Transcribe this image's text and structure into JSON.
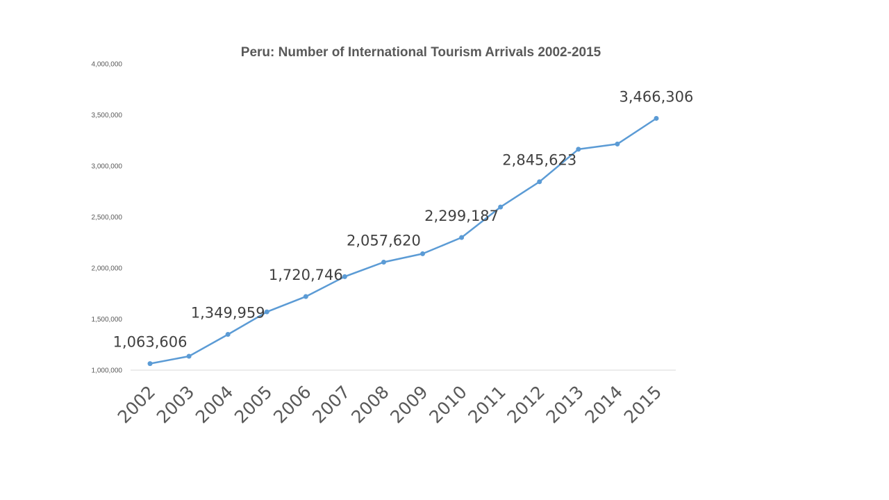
{
  "chart_data": {
    "type": "line",
    "title": "Peru: Number of International Tourism Arrivals 2002-2015",
    "xlabel": "",
    "ylabel": "",
    "ylim": [
      1000000,
      4000000
    ],
    "yticks": [
      1000000,
      1500000,
      2000000,
      2500000,
      3000000,
      3500000,
      4000000
    ],
    "ytick_labels": [
      "1,000,000",
      "1,500,000",
      "2,000,000",
      "2,500,000",
      "3,000,000",
      "3,500,000",
      "4,000,000"
    ],
    "grid": false,
    "legend": "none",
    "categories": [
      "2002",
      "2003",
      "2004",
      "2005",
      "2006",
      "2007",
      "2008",
      "2009",
      "2010",
      "2011",
      "2012",
      "2013",
      "2014",
      "2015"
    ],
    "series": [
      {
        "color": "#5b9bd5",
        "values": [
          1063606,
          1136000,
          1349959,
          1571000,
          1720746,
          1916000,
          2057620,
          2140000,
          2299187,
          2598000,
          2845623,
          3164000,
          3215000,
          3466306
        ]
      }
    ],
    "data_labels": [
      {
        "index": 0,
        "text": "1,063,606"
      },
      {
        "index": 2,
        "text": "1,349,959"
      },
      {
        "index": 4,
        "text": "1,720,746"
      },
      {
        "index": 6,
        "text": "2,057,620"
      },
      {
        "index": 8,
        "text": "2,299,187"
      },
      {
        "index": 10,
        "text": "2,845,623"
      },
      {
        "index": 13,
        "text": "3,466,306"
      }
    ]
  }
}
